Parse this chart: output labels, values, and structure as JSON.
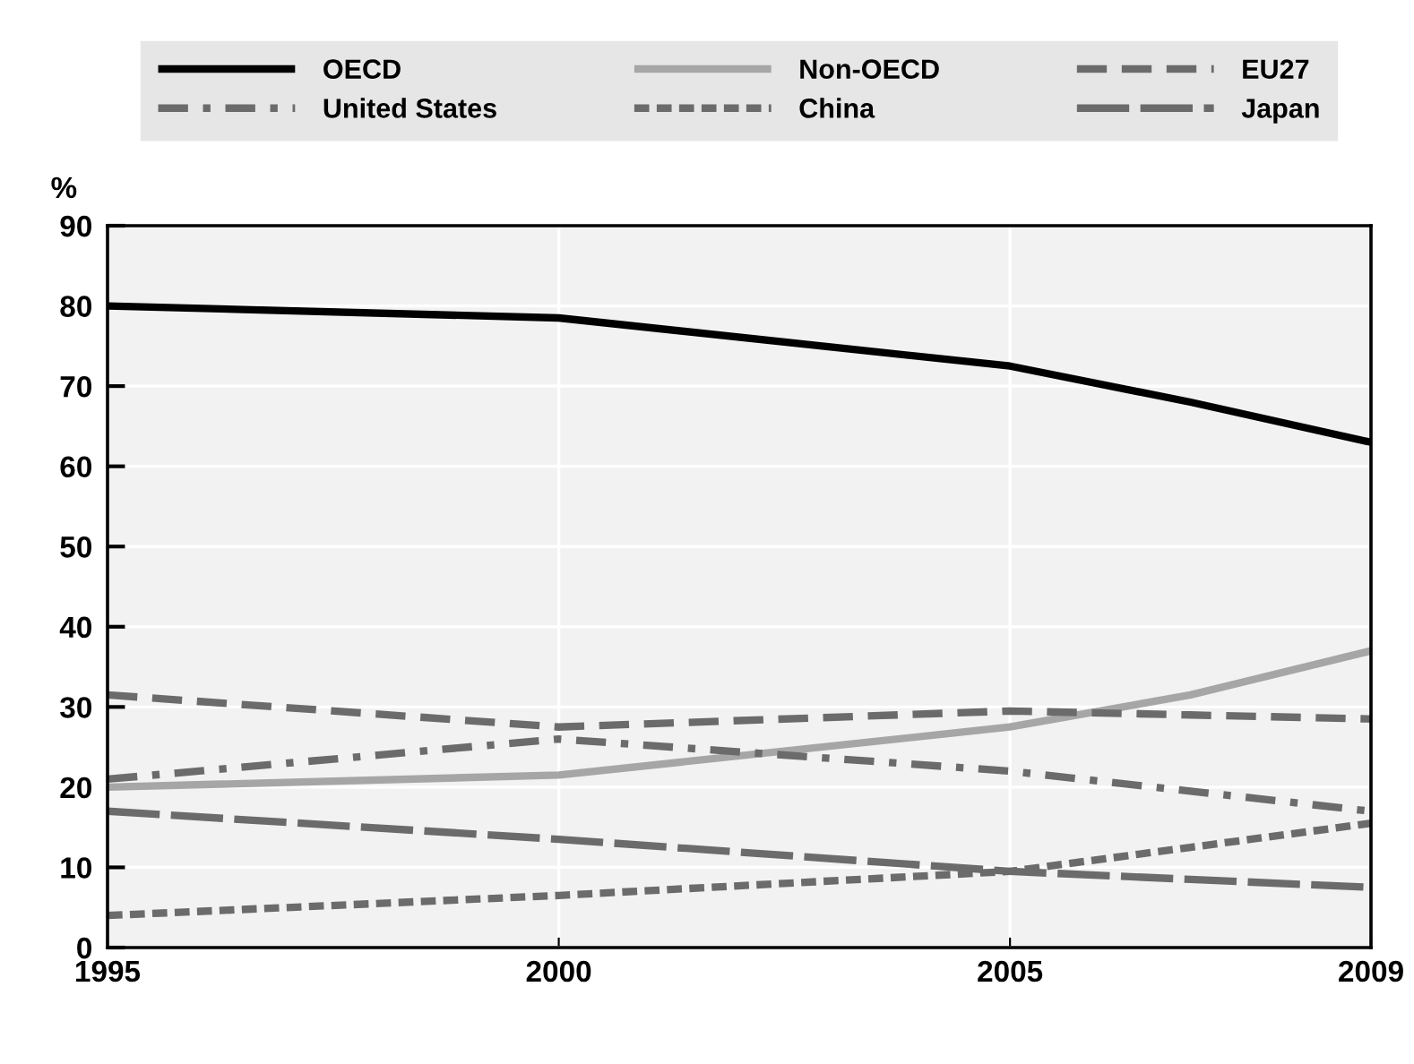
{
  "chart_data": {
    "type": "line",
    "ylabel": "%",
    "x": [
      1995,
      2000,
      2005,
      2007,
      2009
    ],
    "series": [
      {
        "name": "OECD",
        "color": "#000000",
        "line_style": "solid",
        "values": [
          80,
          78.5,
          72.5,
          68,
          63
        ]
      },
      {
        "name": "Non-OECD",
        "color": "#a6a6a6",
        "line_style": "solid",
        "values": [
          20,
          21.5,
          27.5,
          31.5,
          37
        ]
      },
      {
        "name": "EU27",
        "color": "#6b6b6b",
        "line_style": "dashed",
        "values": [
          31.5,
          27.5,
          29.5,
          29,
          28.5
        ]
      },
      {
        "name": "United States",
        "color": "#6b6b6b",
        "line_style": "dashdot",
        "values": [
          21,
          26,
          22,
          19.5,
          17
        ]
      },
      {
        "name": "China",
        "color": "#6b6b6b",
        "line_style": "dotted",
        "values": [
          4,
          6.5,
          9.5,
          12.5,
          15.5
        ]
      },
      {
        "name": "Japan",
        "color": "#6b6b6b",
        "line_style": "longdash",
        "values": [
          17,
          13.5,
          9.5,
          8.5,
          7.5
        ]
      }
    ],
    "xlim": [
      1995,
      2009
    ],
    "xticks": [
      1995,
      2000,
      2005,
      2009
    ],
    "ylim": [
      0,
      90
    ],
    "yticks": [
      0,
      10,
      20,
      30,
      40,
      50,
      60,
      70,
      80,
      90
    ],
    "grid": true,
    "legend": "top",
    "marker": "none"
  }
}
